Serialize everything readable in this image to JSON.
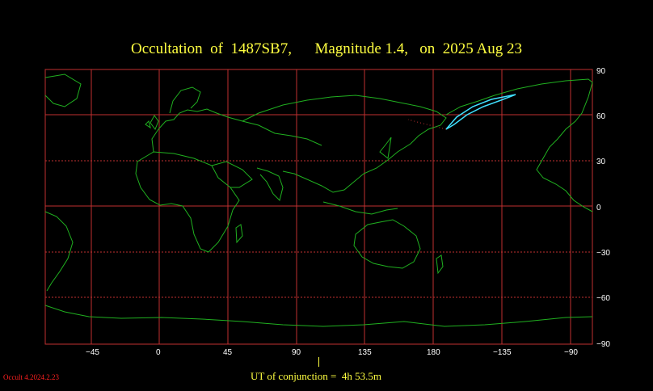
{
  "title": "Occultation  of  1487SB7,      Magnitude 1.4,   on  2025 Aug 23",
  "ut_label": "UT of conjunction =  4h 53.5m",
  "version": "Occult 4.2024.2.23",
  "x_ticks": [
    "−45",
    "0",
    "45",
    "90",
    "135",
    "180",
    "−135",
    "−90"
  ],
  "y_ticks": [
    "90",
    "60",
    "30",
    "0",
    "−30",
    "−60",
    "−90"
  ],
  "colors": {
    "grid": "#c03030",
    "coast": "#20b020",
    "path": "#40e0ff",
    "title": "#ffff40"
  }
}
